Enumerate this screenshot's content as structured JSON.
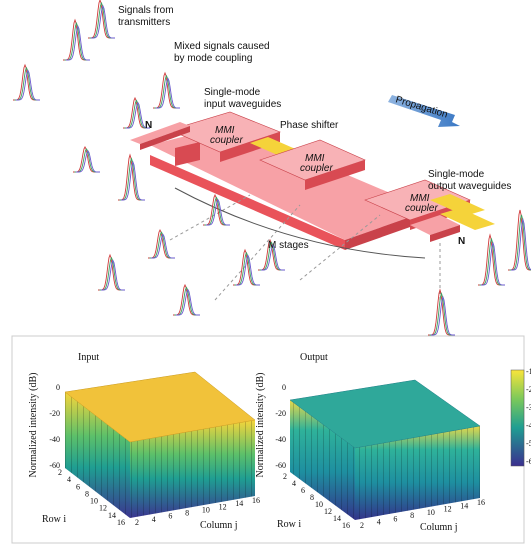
{
  "diagram": {
    "signals_from_transmitters": [
      "Signals from",
      "transmitters"
    ],
    "mixed_signals": [
      "Mixed signals caused",
      "by mode coupling"
    ],
    "input_waveguides": [
      "Single-mode",
      "input waveguides"
    ],
    "phase_shifter": "Phase shifter",
    "propagation": "Propagation",
    "mmi_couplers": [
      [
        "MMI",
        "coupler"
      ],
      [
        "MMI",
        "coupler"
      ],
      [
        "MMI",
        "coupler"
      ]
    ],
    "n_labels": [
      "N",
      "N"
    ],
    "m_stages": "M stages",
    "output_waveguides": [
      "Single-mode",
      "output waveguides"
    ]
  },
  "input_plot": {
    "title": "Input",
    "z_label": "Normalized intensity (dB)",
    "z_ticks": [
      0,
      -20,
      -40,
      -60
    ],
    "row_label": "Row i",
    "row_ticks": [
      2,
      4,
      6,
      8,
      10,
      12,
      14,
      16
    ],
    "column_label": "Column j",
    "column_ticks": [
      2,
      4,
      6,
      8,
      10,
      12,
      14,
      16
    ]
  },
  "output_plot": {
    "title": "Output",
    "z_label": "Normalized intensity (dB)",
    "z_ticks": [
      0,
      -20,
      -40,
      -60
    ],
    "row_label": "Row i",
    "row_ticks": [
      2,
      4,
      6,
      8,
      10,
      12,
      14,
      16
    ],
    "column_label": "Column j",
    "column_ticks": [
      2,
      4,
      6,
      8,
      10,
      12,
      14,
      16
    ]
  },
  "colorbar": {
    "ticks": [
      "-1",
      "-2",
      "-3",
      "-4",
      "-5",
      "-6"
    ]
  }
}
